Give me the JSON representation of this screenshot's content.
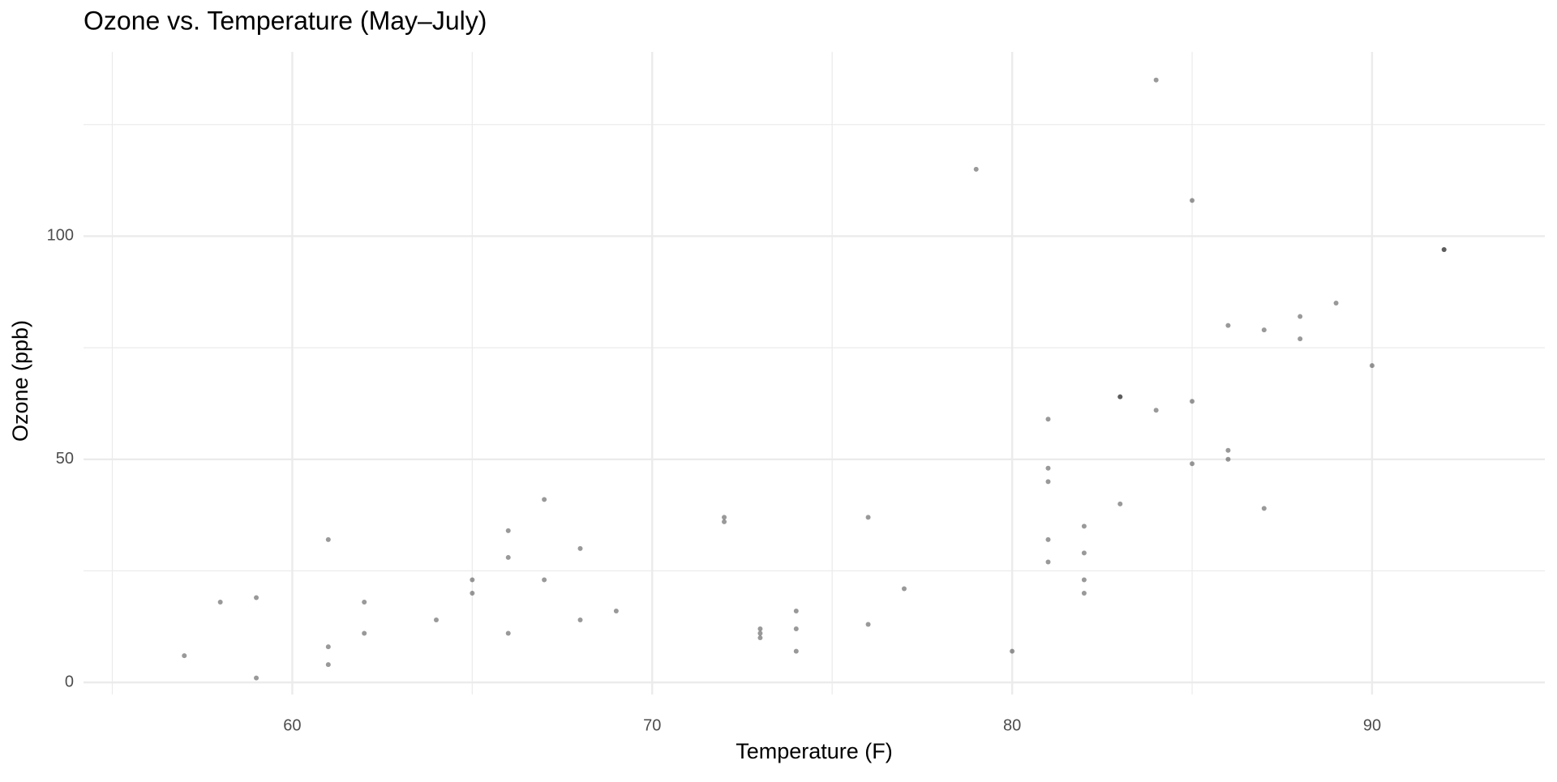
{
  "chart_data": {
    "type": "scatter",
    "title": "Ozone vs. Temperature (May–July)",
    "x_label": "Temperature (F)",
    "y_label": "Ozone (ppb)",
    "x": [
      57,
      58,
      59,
      59,
      61,
      61,
      61,
      62,
      62,
      64,
      65,
      65,
      66,
      66,
      66,
      67,
      67,
      68,
      68,
      69,
      72,
      72,
      73,
      73,
      73,
      74,
      74,
      74,
      76,
      76,
      77,
      79,
      80,
      81,
      81,
      81,
      81,
      81,
      82,
      82,
      82,
      82,
      83,
      83,
      83,
      84,
      84,
      85,
      85,
      85,
      86,
      86,
      86,
      87,
      87,
      88,
      88,
      89,
      90,
      92,
      92
    ],
    "values": [
      6,
      18,
      19,
      1,
      32,
      8,
      4,
      18,
      11,
      14,
      23,
      20,
      34,
      28,
      11,
      41,
      23,
      30,
      14,
      16,
      37,
      36,
      12,
      11,
      10,
      16,
      12,
      7,
      37,
      13,
      21,
      115,
      7,
      59,
      48,
      45,
      32,
      27,
      35,
      29,
      23,
      20,
      64,
      64,
      40,
      135,
      61,
      108,
      63,
      49,
      80,
      52,
      50,
      79,
      39,
      82,
      77,
      85,
      71,
      97,
      97
    ],
    "color": "#000000",
    "xlim": [
      54.2,
      94.8
    ],
    "xticks": [
      60,
      70,
      80,
      90
    ],
    "x_minor_ticks": [
      55,
      65,
      75,
      85
    ],
    "ylim": [
      -2.7,
      141.3
    ],
    "yticks": [
      0,
      50,
      100
    ],
    "y_minor_ticks": [
      25,
      75,
      125
    ],
    "grid": true
  }
}
